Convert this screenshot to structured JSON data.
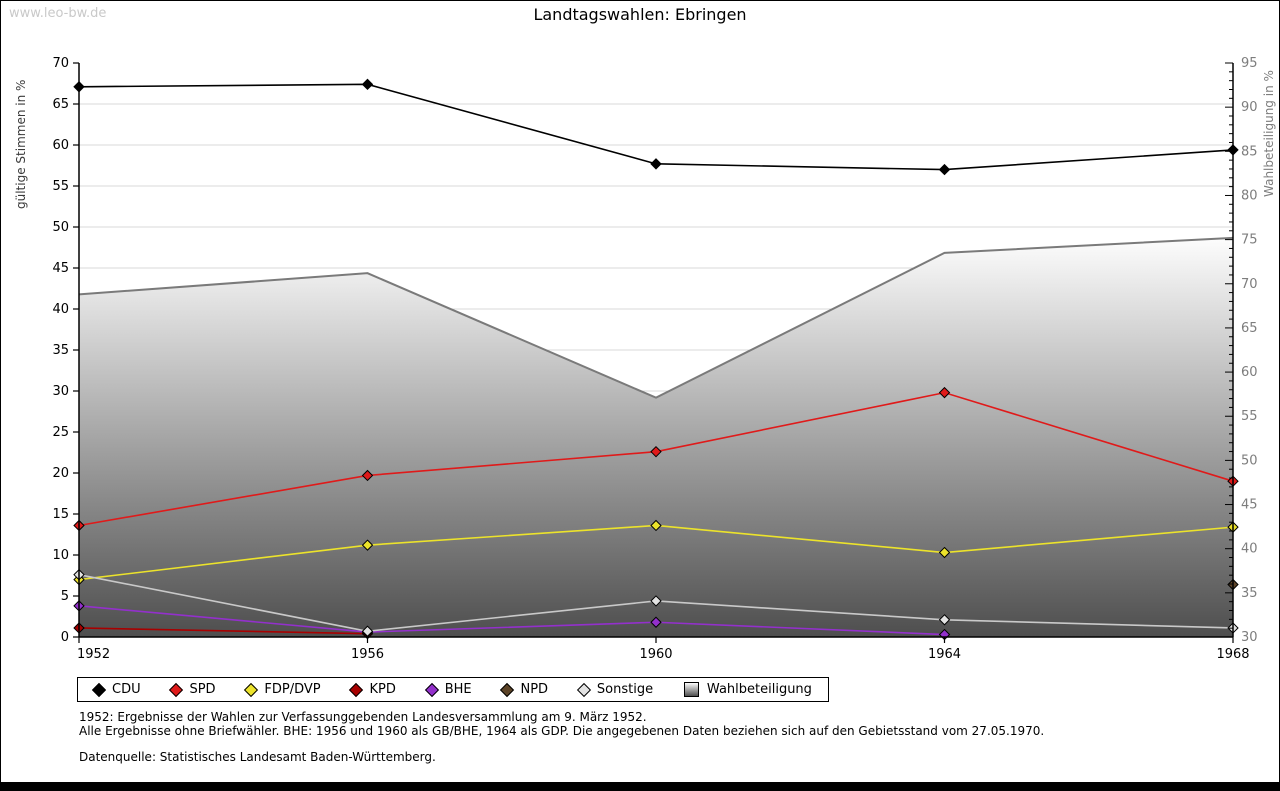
{
  "page": {
    "watermark": "www.leo-bw.de"
  },
  "header": {
    "title": "Landtagswahlen: Ebringen"
  },
  "chart_data": {
    "type": "line",
    "title": "Landtagswahlen: Ebringen",
    "x_categories": [
      "1952",
      "1956",
      "1960",
      "1964",
      "1968"
    ],
    "left_axis": {
      "label": "gültige Stimmen in %",
      "min": 0,
      "max": 70,
      "step": 5
    },
    "right_axis": {
      "label": "Wahlbeteiligung in %",
      "min": 30,
      "max": 95,
      "step": 5,
      "minor_step": 1
    },
    "grid": true,
    "legend_position": "bottom",
    "series": [
      {
        "name": "CDU",
        "type": "line",
        "axis": "left",
        "color": "#000000",
        "values": [
          67.1,
          67.4,
          57.7,
          57.0,
          59.4
        ]
      },
      {
        "name": "SPD",
        "type": "line",
        "axis": "left",
        "color": "#e01a1a",
        "values": [
          13.6,
          19.7,
          22.6,
          29.8,
          19.0
        ]
      },
      {
        "name": "FDP/DVP",
        "type": "line",
        "axis": "left",
        "color": "#ece32b",
        "values": [
          7.0,
          11.2,
          13.6,
          10.3,
          13.4
        ]
      },
      {
        "name": "KPD",
        "type": "line",
        "axis": "left",
        "color": "#a80000",
        "values": [
          1.1,
          0.4,
          null,
          null,
          null
        ]
      },
      {
        "name": "BHE",
        "type": "line",
        "axis": "left",
        "color": "#9330cc",
        "values": [
          3.8,
          0.6,
          1.8,
          0.3,
          null
        ]
      },
      {
        "name": "NPD",
        "type": "line",
        "axis": "left",
        "color": "#5c4327",
        "values": [
          null,
          null,
          null,
          null,
          6.4
        ]
      },
      {
        "name": "Sonstige",
        "type": "line",
        "axis": "left",
        "color": "#c9c9c9",
        "marker_color": "#e3e3e3",
        "values": [
          7.6,
          0.7,
          4.4,
          2.1,
          1.1
        ]
      },
      {
        "name": "Wahlbeteiligung",
        "type": "area",
        "axis": "right",
        "color": "#7a7a7a",
        "fill_top": "#fdfdfd",
        "fill_bottom": "#4e4e4e",
        "values": [
          68.8,
          71.2,
          57.1,
          73.5,
          75.2
        ]
      }
    ]
  },
  "footer": {
    "note1": "1952: Ergebnisse der Wahlen zur Verfassunggebenden Landesversammlung am 9. März 1952.",
    "note2": "Alle Ergebnisse ohne Briefwähler. BHE: 1956 und 1960 als GB/BHE, 1964 als GDP. Die angegebenen Daten beziehen sich auf den Gebietsstand vom 27.05.1970.",
    "source": "Datenquelle: Statistisches Landesamt Baden-Württemberg."
  }
}
